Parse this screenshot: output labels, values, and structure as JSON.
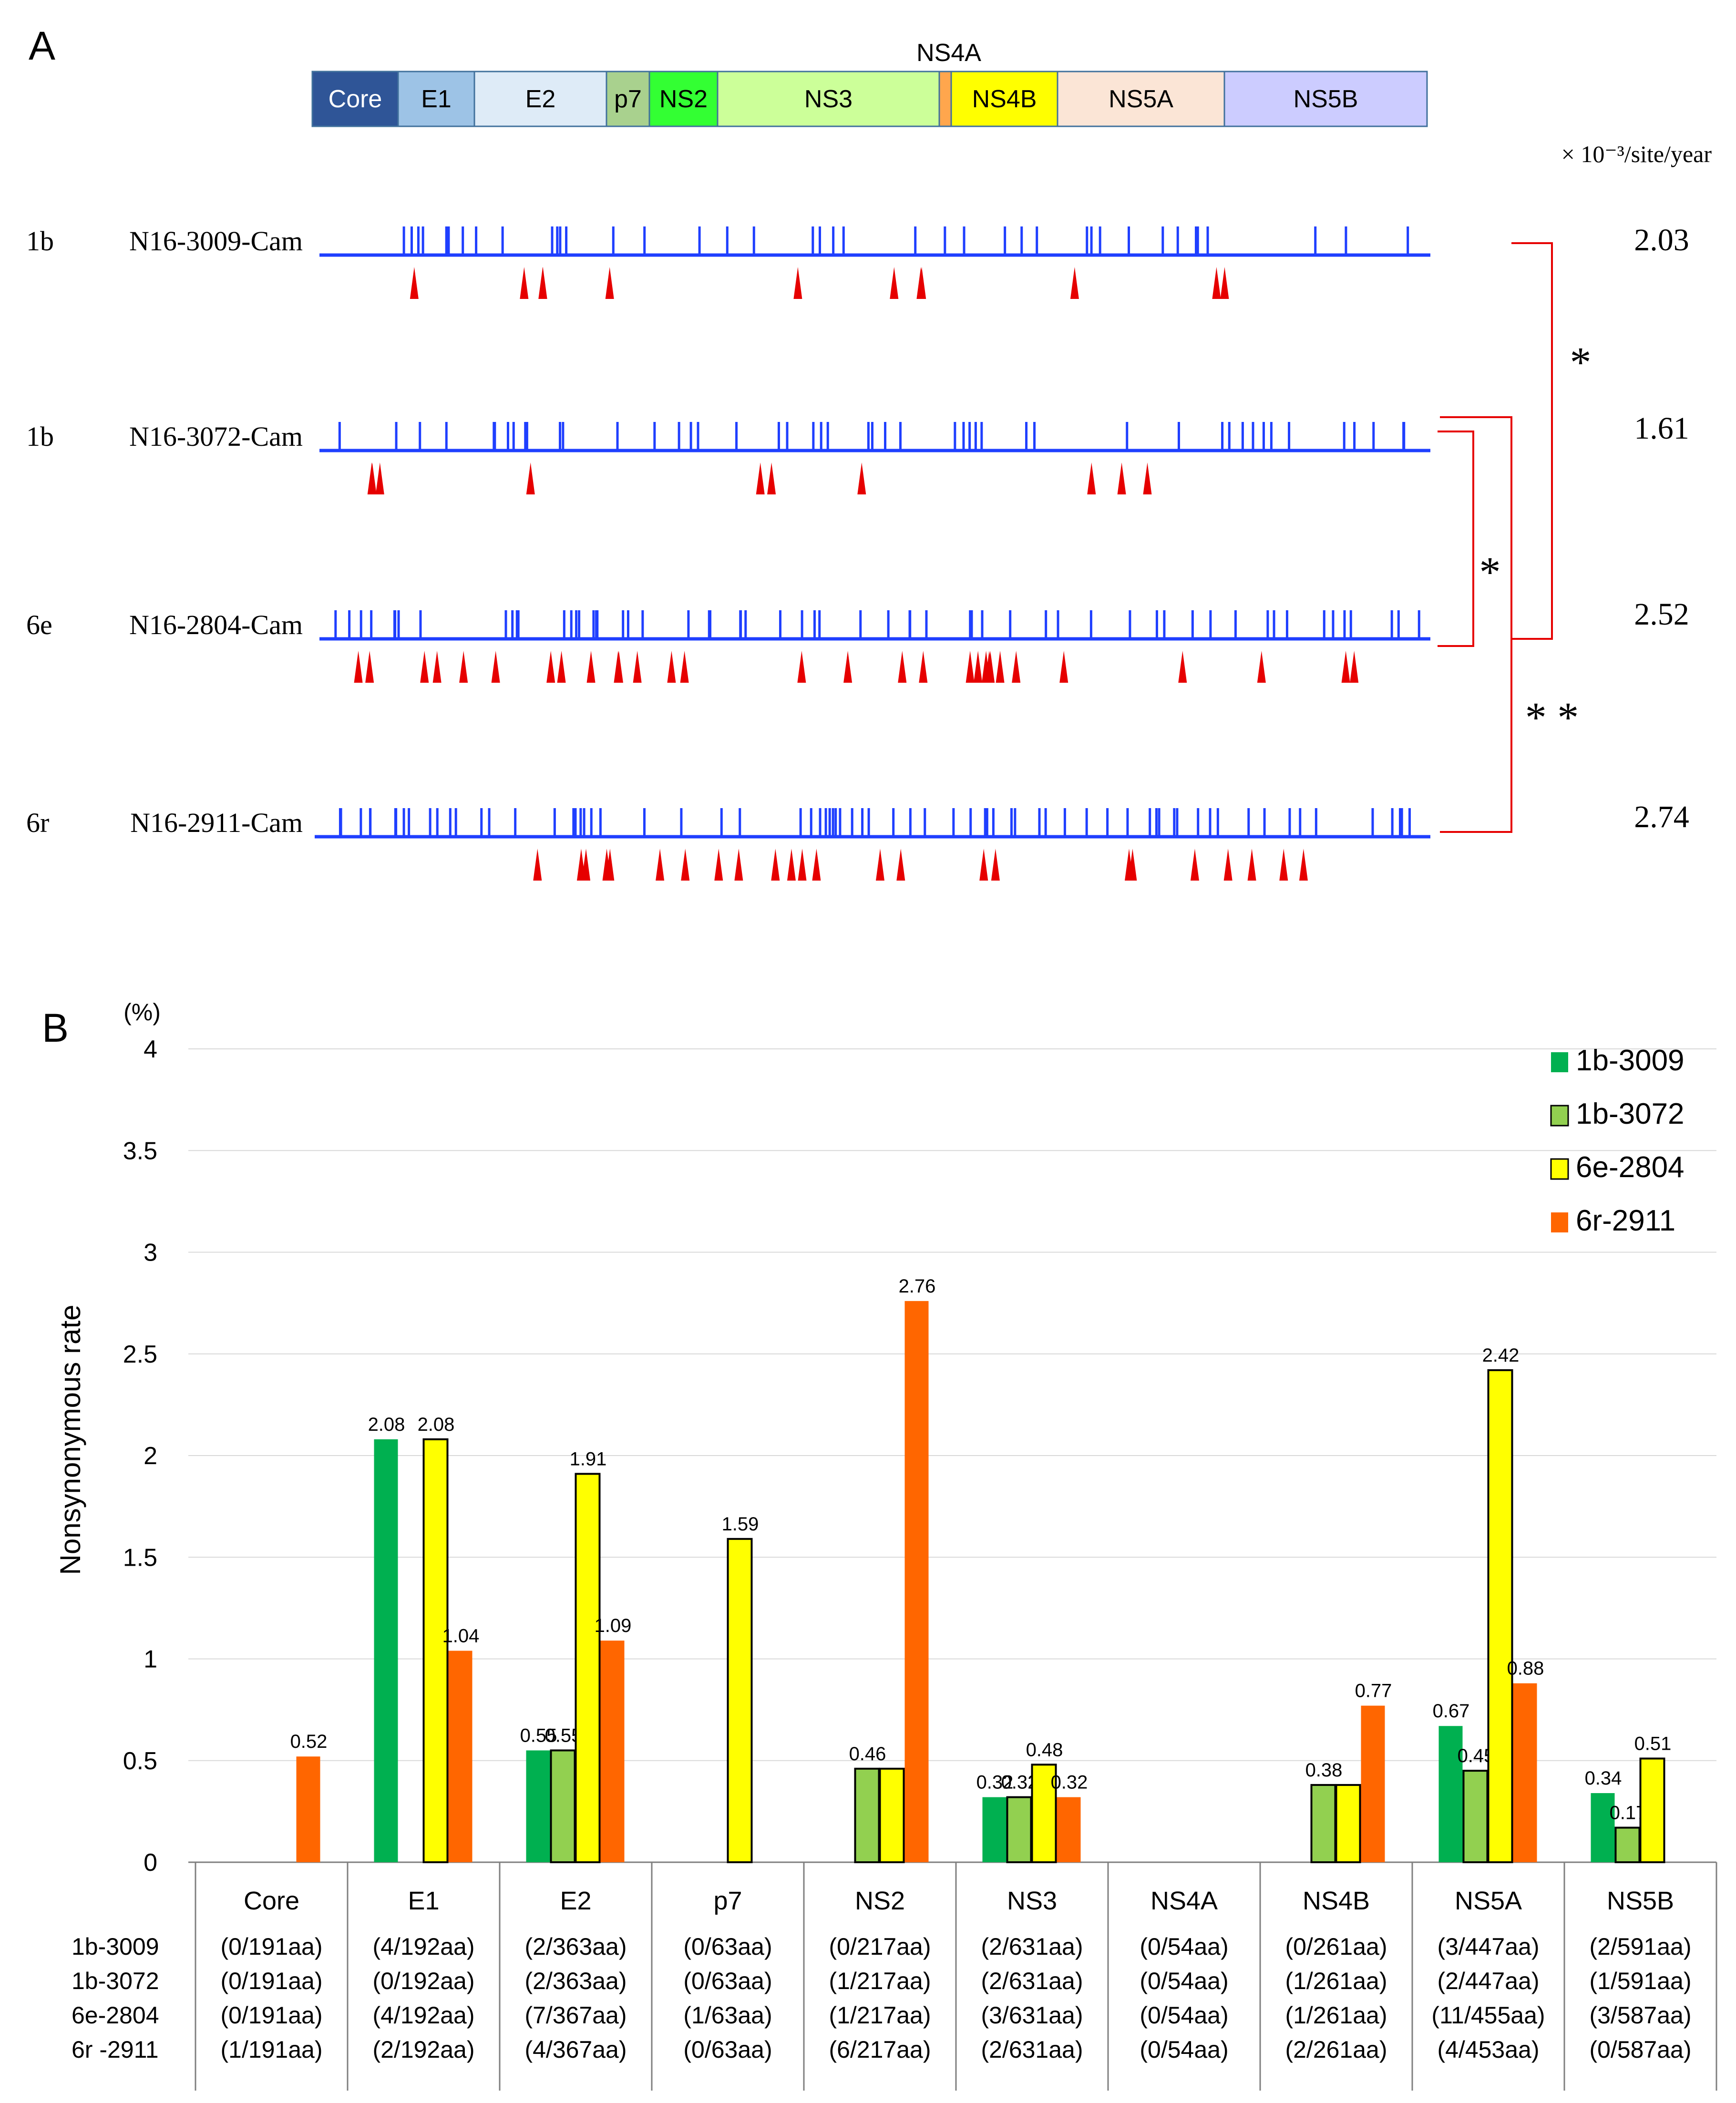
{
  "panelA": {
    "label": "A",
    "genome": [
      {
        "name": "Core",
        "color": "#2f5597",
        "textColor": "#ffffff"
      },
      {
        "name": "E1",
        "color": "#9dc3e6",
        "textColor": "#000000"
      },
      {
        "name": "E2",
        "color": "#deebf7",
        "textColor": "#000000"
      },
      {
        "name": "p7",
        "color": "#a9d18e",
        "textColor": "#000000"
      },
      {
        "name": "NS2",
        "color": "#33ff33",
        "textColor": "#000000"
      },
      {
        "name": "NS3",
        "color": "#ccff99",
        "textColor": "#000000"
      },
      {
        "name": "NS4A",
        "color": "#ffa64d",
        "textColor": "#000000"
      },
      {
        "name": "NS4B",
        "color": "#ffff00",
        "textColor": "#000000"
      },
      {
        "name": "NS5A",
        "color": "#fbe5d6",
        "textColor": "#000000"
      },
      {
        "name": "NS5B",
        "color": "#ccccff",
        "textColor": "#000000"
      }
    ],
    "ns4a_label": "NS4A",
    "unit_label": "× 10⁻³/site/year",
    "strains": [
      {
        "genotype": "1b",
        "name": "N16-3009-Cam",
        "rate": "2.03",
        "ticks": 40,
        "arrows": 12
      },
      {
        "genotype": "1b",
        "name": "N16-3072-Cam",
        "rate": "1.61",
        "ticks": 48,
        "arrows": 10
      },
      {
        "genotype": "6e",
        "name": "N16-2804-Cam",
        "rate": "2.52",
        "ticks": 60,
        "arrows": 30
      },
      {
        "genotype": "6r",
        "name": "N16-2911-Cam",
        "rate": "2.74",
        "ticks": 72,
        "arrows": 24
      }
    ],
    "significance": [
      "*",
      "*",
      "* *"
    ],
    "colors": {
      "mutation": "#1f3fff",
      "arrow": "#e60000",
      "bracket": "#e60000"
    }
  },
  "panelB": {
    "label": "B",
    "ylabel": "Nonsynonymous  rate",
    "unit": "(%)",
    "row_labels": [
      "1b-3009",
      "1b-3072",
      "6e-2804",
      "6r -2911"
    ],
    "chart_data": {
      "type": "bar",
      "categories": [
        "Core",
        "E1",
        "E2",
        "p7",
        "NS2",
        "NS3",
        "NS4A",
        "NS4B",
        "NS5A",
        "NS5B"
      ],
      "ylim": [
        0,
        4
      ],
      "yticks": [
        "0",
        "0.5",
        "1",
        "1.5",
        "2",
        "2.5",
        "3",
        "3.5",
        "4"
      ],
      "series": [
        {
          "name": "1b-3009",
          "color": "#00b050",
          "border": false,
          "values": [
            0,
            2.08,
            0.55,
            0,
            0,
            0.32,
            0,
            0,
            0.67,
            0.34
          ],
          "labels": [
            "",
            "2.08",
            "0.55",
            "",
            "",
            "0.32",
            "",
            "",
            "0.67",
            "0.34"
          ],
          "counts": [
            "(0/191aa)",
            "(4/192aa)",
            "(2/363aa)",
            "(0/63aa)",
            "(0/217aa)",
            "(2/631aa)",
            "(0/54aa)",
            "(0/261aa)",
            "(3/447aa)",
            "(2/591aa)"
          ]
        },
        {
          "name": "1b-3072",
          "color": "#92d050",
          "border": true,
          "values": [
            0,
            0,
            0.55,
            0,
            0.46,
            0.32,
            0,
            0.38,
            0.45,
            0.17
          ],
          "labels": [
            "",
            "",
            "0.55",
            "",
            "0.46",
            "0.32",
            "",
            "0.38",
            "0.45",
            "0.17"
          ],
          "counts": [
            "(0/191aa)",
            "(0/192aa)",
            "(2/363aa)",
            "(0/63aa)",
            "(1/217aa)",
            "(2/631aa)",
            "(0/54aa)",
            "(1/261aa)",
            "(2/447aa)",
            "(1/591aa)"
          ]
        },
        {
          "name": "6e-2804",
          "color": "#ffff00",
          "border": true,
          "values": [
            0,
            2.08,
            1.91,
            1.59,
            0.46,
            0.48,
            0,
            0.38,
            2.42,
            0.51
          ],
          "labels": [
            "",
            "2.08",
            "1.91",
            "1.59",
            "",
            "0.48",
            "",
            "",
            "2.42",
            "0.51"
          ],
          "counts": [
            "(0/191aa)",
            "(4/192aa)",
            "(7/367aa)",
            "(1/63aa)",
            "(1/217aa)",
            "(3/631aa)",
            "(0/54aa)",
            "(1/261aa)",
            "(11/455aa)",
            "(3/587aa)"
          ]
        },
        {
          "name": "6r-2911",
          "color": "#ff6600",
          "border": false,
          "values": [
            0.52,
            1.04,
            1.09,
            0,
            2.76,
            0.32,
            0,
            0.77,
            0.88,
            0
          ],
          "labels": [
            "0.52",
            "1.04",
            "1.09",
            "",
            "2.76",
            "0.32",
            "",
            "0.77",
            "0.88",
            ""
          ],
          "counts": [
            "(1/191aa)",
            "(2/192aa)",
            "(4/367aa)",
            "(0/63aa)",
            "(6/217aa)",
            "(2/631aa)",
            "(0/54aa)",
            "(2/261aa)",
            "(4/453aa)",
            "(0/587aa)"
          ]
        }
      ]
    }
  }
}
